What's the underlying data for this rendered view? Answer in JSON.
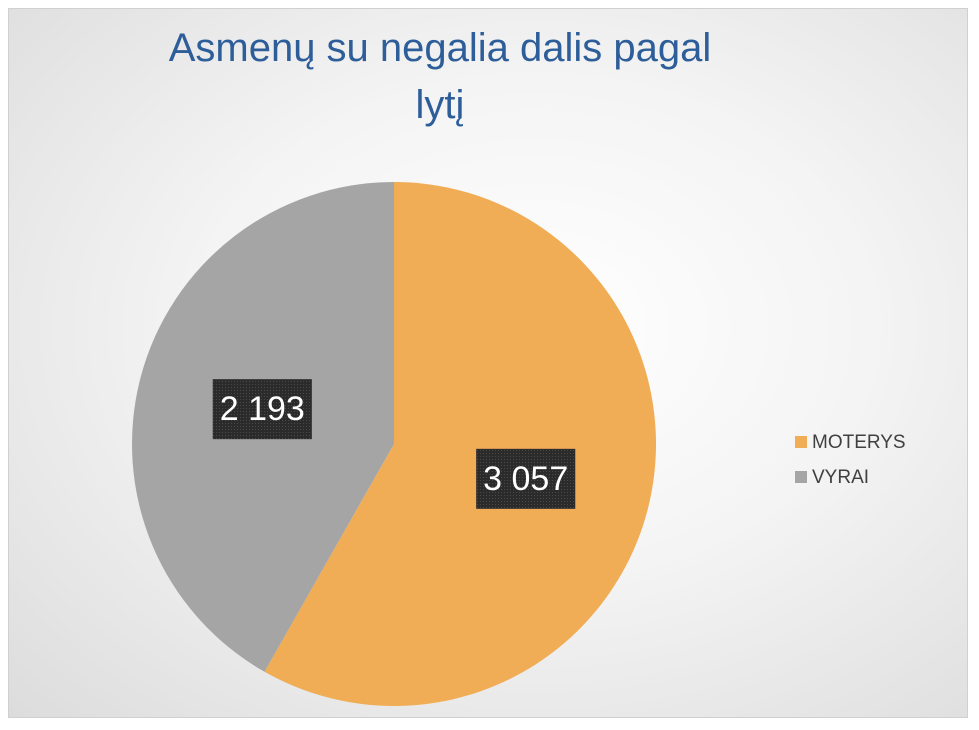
{
  "chart_data": {
    "type": "pie",
    "title": "Asmenų su negalia dalis pagal lytį",
    "categories": [
      "MOTERYS",
      "VYRAI"
    ],
    "values": [
      3057,
      2193
    ],
    "value_labels": [
      "3 057",
      "2 193"
    ],
    "colors": [
      "#f0ad55",
      "#a5a5a5"
    ],
    "legend": "right"
  }
}
